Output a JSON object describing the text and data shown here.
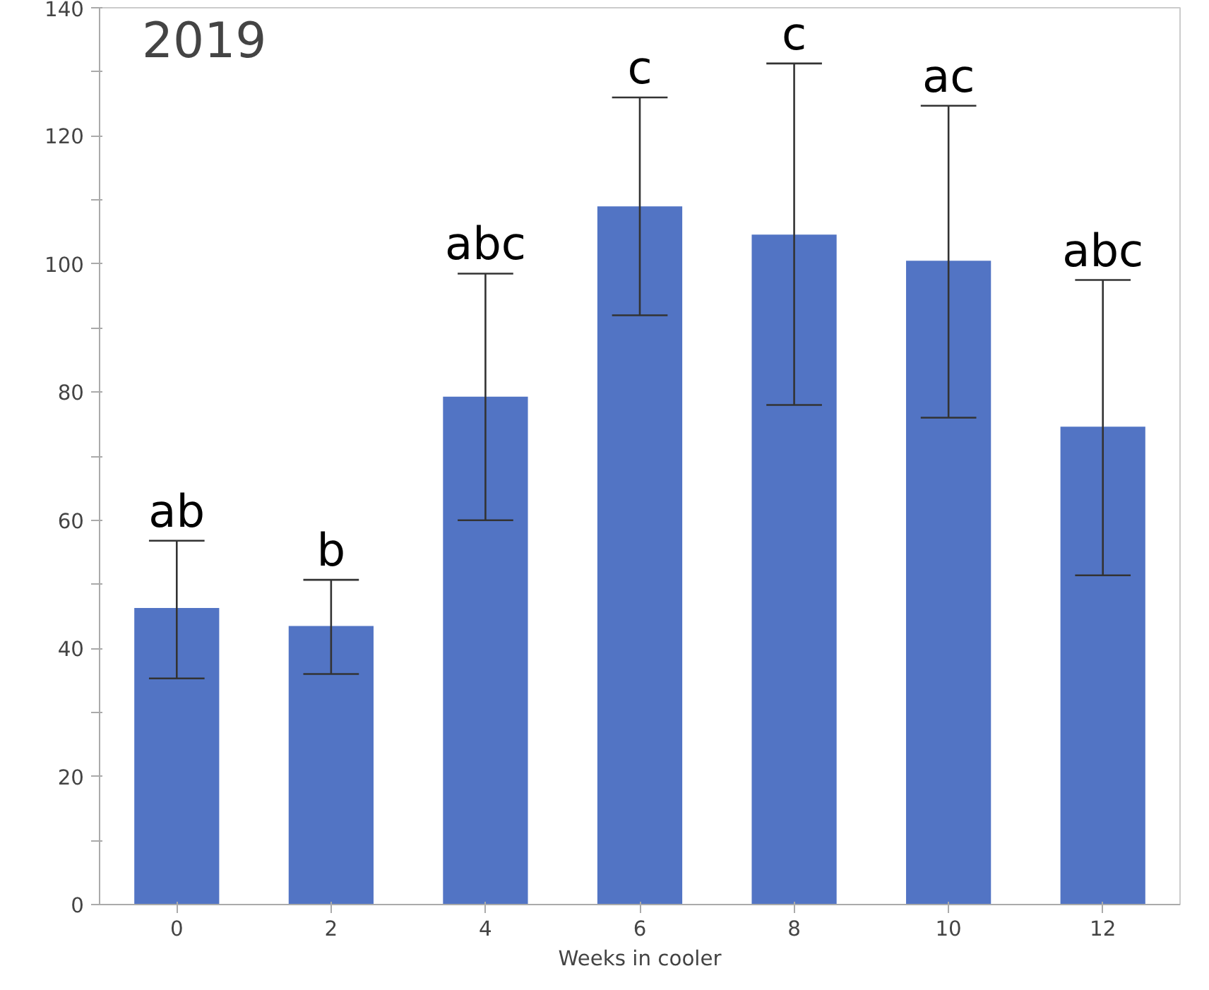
{
  "chart_data": {
    "type": "bar",
    "xlabel": "Weeks in cooler",
    "categories": [
      "0",
      "2",
      "4",
      "6",
      "8",
      "10",
      "12"
    ],
    "values": [
      46.3,
      43.5,
      79.3,
      109,
      104.6,
      100.5,
      74.6
    ],
    "errors": [
      [
        35.3,
        56.8
      ],
      [
        36,
        50.7
      ],
      [
        60,
        98.5
      ],
      [
        92,
        126
      ],
      [
        78,
        131.3
      ],
      [
        76,
        124.7
      ],
      [
        51.4,
        97.5
      ]
    ],
    "color": "#5274c4",
    "ylim": [
      0,
      140
    ],
    "yticks": [
      0,
      {
        "value": 10,
        "label": null
      },
      20,
      {
        "value": 30,
        "label": null
      },
      40,
      {
        "value": 50,
        "label": null
      },
      60,
      {
        "value": 70,
        "label": null
      },
      80,
      {
        "value": 90,
        "label": null
      },
      100,
      {
        "value": 110,
        "label": null
      },
      120,
      {
        "value": 130,
        "label": null
      },
      140
    ],
    "grid": false,
    "annotations": [
      "2019",
      {
        "text": "ab",
        "x": "0",
        "y": 56.8
      },
      {
        "text": "b",
        "x": "2",
        "y": 50.7
      },
      {
        "text": "abc",
        "x": "4",
        "y": 98.5
      },
      {
        "text": "c",
        "x": "6",
        "y": 126
      },
      {
        "text": "c",
        "x": "8",
        "y": 131.3
      },
      {
        "text": "ac",
        "x": "10",
        "y": 124.7
      },
      {
        "text": "abc",
        "x": "12",
        "y": 97.5
      }
    ]
  }
}
